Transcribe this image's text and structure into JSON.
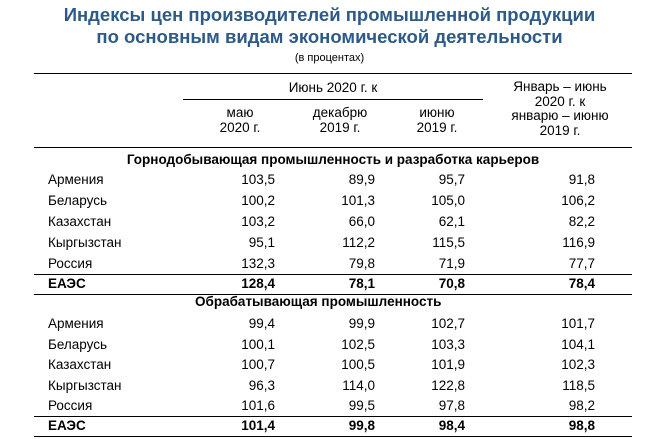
{
  "title_line1": "Индексы цен производителей промышленной продукции",
  "title_line2": "по основным видам экономической деятельности",
  "subtitle": "(в процентах)",
  "header": {
    "group": "Июнь 2020 г. к",
    "col1": [
      "маю",
      "2020 г."
    ],
    "col2": [
      "декабрю",
      "2019 г."
    ],
    "col3": [
      "июню",
      "2019 г."
    ],
    "col4": [
      "Январь – июнь",
      "2020 г. к",
      "январю – июню",
      "2019 г."
    ]
  },
  "sections": [
    {
      "title": "Горнодобывающая промышленность и разработка карьеров",
      "rows": [
        {
          "name": "Армения",
          "v": [
            "103,5",
            "89,9",
            "95,7",
            "91,8"
          ]
        },
        {
          "name": "Беларусь",
          "v": [
            "100,2",
            "101,3",
            "105,0",
            "106,2"
          ]
        },
        {
          "name": "Казахстан",
          "v": [
            "103,2",
            "66,0",
            "62,1",
            "82,2"
          ]
        },
        {
          "name": "Кыргызстан",
          "v": [
            "95,1",
            "112,2",
            "115,5",
            "116,9"
          ]
        },
        {
          "name": "Россия",
          "v": [
            "132,3",
            "79,8",
            "71,9",
            "77,7"
          ]
        },
        {
          "name": "ЕАЭС",
          "v": [
            "128,4",
            "78,1",
            "70,8",
            "78,4"
          ],
          "bold": true
        }
      ]
    },
    {
      "title": "Обрабатывающая промышленность",
      "rows": [
        {
          "name": "Армения",
          "v": [
            "99,4",
            "99,9",
            "102,7",
            "101,7"
          ]
        },
        {
          "name": "Беларусь",
          "v": [
            "100,1",
            "102,5",
            "103,3",
            "104,1"
          ]
        },
        {
          "name": "Казахстан",
          "v": [
            "100,7",
            "100,5",
            "101,9",
            "102,3"
          ]
        },
        {
          "name": "Кыргызстан",
          "v": [
            "96,3",
            "114,0",
            "122,8",
            "118,5"
          ]
        },
        {
          "name": "Россия",
          "v": [
            "101,6",
            "99,5",
            "97,8",
            "98,2"
          ]
        },
        {
          "name": "ЕАЭС",
          "v": [
            "101,4",
            "99,8",
            "98,4",
            "98,8"
          ],
          "bold": true
        }
      ]
    }
  ]
}
